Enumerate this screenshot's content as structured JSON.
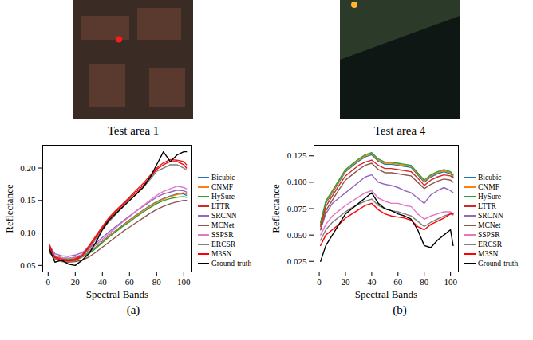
{
  "images": [
    {
      "caption": "Test area 1"
    },
    {
      "caption": "Test area 4"
    }
  ],
  "chart_data": [
    {
      "type": "line",
      "caption": "(a)",
      "x_label": "Spectral Bands",
      "y_label": "Reflectance",
      "x": [
        1,
        5,
        10,
        15,
        20,
        25,
        30,
        35,
        40,
        45,
        50,
        55,
        60,
        65,
        70,
        75,
        80,
        85,
        90,
        95,
        100,
        102
      ],
      "xlim": [
        -4,
        106
      ],
      "xticks": [
        0,
        20,
        40,
        60,
        80,
        100
      ],
      "ylim": [
        0.04,
        0.235
      ],
      "yticks": [
        {
          "value": 0.05,
          "label": "0.05"
        },
        {
          "value": 0.1,
          "label": "0.10"
        },
        {
          "value": 0.15,
          "label": "0.15"
        },
        {
          "value": 0.2,
          "label": "0.20"
        }
      ],
      "grid": false,
      "legend": "right",
      "series": [
        {
          "name": "Bicubic",
          "color": "#1f77b4",
          "values": [
            0.075,
            0.065,
            0.062,
            0.061,
            0.062,
            0.065,
            0.07,
            0.078,
            0.087,
            0.096,
            0.104,
            0.112,
            0.12,
            0.128,
            0.135,
            0.142,
            0.148,
            0.153,
            0.157,
            0.16,
            0.16,
            0.158
          ]
        },
        {
          "name": "CNMF",
          "color": "#ff7f0e",
          "values": [
            0.074,
            0.064,
            0.061,
            0.06,
            0.061,
            0.064,
            0.069,
            0.077,
            0.086,
            0.095,
            0.103,
            0.111,
            0.119,
            0.127,
            0.134,
            0.141,
            0.147,
            0.152,
            0.156,
            0.159,
            0.162,
            0.16
          ]
        },
        {
          "name": "HySure",
          "color": "#2ca02c",
          "values": [
            0.073,
            0.063,
            0.06,
            0.059,
            0.06,
            0.063,
            0.068,
            0.076,
            0.085,
            0.094,
            0.102,
            0.11,
            0.117,
            0.125,
            0.132,
            0.139,
            0.145,
            0.15,
            0.153,
            0.155,
            0.156,
            0.155
          ]
        },
        {
          "name": "LTTR",
          "color": "#d62728",
          "values": [
            0.082,
            0.063,
            0.06,
            0.058,
            0.06,
            0.067,
            0.08,
            0.095,
            0.11,
            0.124,
            0.135,
            0.145,
            0.155,
            0.166,
            0.176,
            0.188,
            0.2,
            0.208,
            0.213,
            0.212,
            0.21,
            0.205
          ]
        },
        {
          "name": "SRCNN",
          "color": "#9467bd",
          "values": [
            0.08,
            0.068,
            0.065,
            0.064,
            0.066,
            0.07,
            0.076,
            0.084,
            0.093,
            0.102,
            0.11,
            0.118,
            0.126,
            0.134,
            0.141,
            0.148,
            0.155,
            0.16,
            0.163,
            0.166,
            0.165,
            0.163
          ]
        },
        {
          "name": "MCNet",
          "color": "#8c564b",
          "values": [
            0.07,
            0.06,
            0.056,
            0.055,
            0.056,
            0.058,
            0.063,
            0.07,
            0.078,
            0.086,
            0.094,
            0.102,
            0.109,
            0.116,
            0.123,
            0.13,
            0.136,
            0.141,
            0.145,
            0.148,
            0.15,
            0.15
          ]
        },
        {
          "name": "SSPSR",
          "color": "#e377c2",
          "values": [
            0.076,
            0.065,
            0.062,
            0.061,
            0.063,
            0.067,
            0.073,
            0.081,
            0.09,
            0.099,
            0.108,
            0.117,
            0.125,
            0.134,
            0.142,
            0.15,
            0.158,
            0.164,
            0.168,
            0.172,
            0.17,
            0.168
          ]
        },
        {
          "name": "ERCSR",
          "color": "#7f7f7f",
          "values": [
            0.078,
            0.06,
            0.057,
            0.056,
            0.057,
            0.063,
            0.075,
            0.09,
            0.105,
            0.118,
            0.129,
            0.14,
            0.15,
            0.16,
            0.17,
            0.182,
            0.195,
            0.2,
            0.205,
            0.205,
            0.2,
            0.197
          ]
        },
        {
          "name": "M3SN",
          "color": "#ff0000",
          "values": [
            0.08,
            0.062,
            0.058,
            0.057,
            0.058,
            0.065,
            0.078,
            0.093,
            0.108,
            0.122,
            0.133,
            0.143,
            0.153,
            0.163,
            0.173,
            0.185,
            0.198,
            0.205,
            0.21,
            0.21,
            0.205,
            0.2
          ]
        },
        {
          "name": "Ground-truth",
          "color": "#000000",
          "values": [
            0.075,
            0.055,
            0.058,
            0.052,
            0.05,
            0.058,
            0.068,
            0.085,
            0.105,
            0.12,
            0.13,
            0.14,
            0.15,
            0.16,
            0.17,
            0.185,
            0.205,
            0.225,
            0.21,
            0.22,
            0.225,
            0.225
          ]
        }
      ]
    },
    {
      "type": "line",
      "caption": "(b)",
      "x_label": "Spectral Bands",
      "y_label": "Reflectance",
      "x": [
        1,
        5,
        10,
        15,
        20,
        25,
        30,
        35,
        40,
        45,
        50,
        55,
        60,
        65,
        70,
        75,
        80,
        85,
        90,
        95,
        100,
        102
      ],
      "xlim": [
        -4,
        106
      ],
      "xticks": [
        0,
        20,
        40,
        60,
        80,
        100
      ],
      "ylim": [
        0.015,
        0.135
      ],
      "yticks": [
        {
          "value": 0.025,
          "label": "0.025"
        },
        {
          "value": 0.05,
          "label": "0.050"
        },
        {
          "value": 0.075,
          "label": "0.075"
        },
        {
          "value": 0.1,
          "label": "0.100"
        },
        {
          "value": 0.125,
          "label": "0.125"
        }
      ],
      "grid": false,
      "legend": "right",
      "series": [
        {
          "name": "Bicubic",
          "color": "#1f77b4",
          "values": [
            0.06,
            0.08,
            0.09,
            0.1,
            0.11,
            0.115,
            0.12,
            0.124,
            0.126,
            0.12,
            0.117,
            0.117,
            0.116,
            0.115,
            0.114,
            0.107,
            0.1,
            0.105,
            0.108,
            0.11,
            0.108,
            0.105
          ]
        },
        {
          "name": "CNMF",
          "color": "#ff7f0e",
          "values": [
            0.061,
            0.081,
            0.091,
            0.101,
            0.111,
            0.116,
            0.121,
            0.125,
            0.127,
            0.121,
            0.118,
            0.118,
            0.117,
            0.116,
            0.115,
            0.108,
            0.101,
            0.106,
            0.109,
            0.111,
            0.109,
            0.106
          ]
        },
        {
          "name": "HySure",
          "color": "#2ca02c",
          "values": [
            0.062,
            0.082,
            0.092,
            0.102,
            0.112,
            0.117,
            0.122,
            0.126,
            0.128,
            0.122,
            0.119,
            0.119,
            0.118,
            0.117,
            0.116,
            0.109,
            0.102,
            0.107,
            0.11,
            0.112,
            0.11,
            0.107
          ]
        },
        {
          "name": "LTTR",
          "color": "#d62728",
          "values": [
            0.058,
            0.077,
            0.087,
            0.097,
            0.106,
            0.111,
            0.116,
            0.119,
            0.121,
            0.116,
            0.113,
            0.113,
            0.112,
            0.111,
            0.11,
            0.104,
            0.097,
            0.102,
            0.105,
            0.107,
            0.106,
            0.104
          ]
        },
        {
          "name": "SRCNN",
          "color": "#9467bd",
          "values": [
            0.055,
            0.07,
            0.08,
            0.085,
            0.09,
            0.095,
            0.1,
            0.105,
            0.107,
            0.1,
            0.098,
            0.097,
            0.095,
            0.092,
            0.09,
            0.085,
            0.08,
            0.088,
            0.092,
            0.095,
            0.092,
            0.09
          ]
        },
        {
          "name": "MCNet",
          "color": "#8c564b",
          "values": [
            0.055,
            0.073,
            0.083,
            0.093,
            0.102,
            0.107,
            0.112,
            0.116,
            0.118,
            0.112,
            0.109,
            0.109,
            0.108,
            0.107,
            0.106,
            0.1,
            0.094,
            0.098,
            0.101,
            0.103,
            0.102,
            0.1
          ]
        },
        {
          "name": "SSPSR",
          "color": "#e377c2",
          "values": [
            0.05,
            0.06,
            0.068,
            0.073,
            0.078,
            0.082,
            0.086,
            0.09,
            0.092,
            0.085,
            0.082,
            0.08,
            0.08,
            0.078,
            0.077,
            0.07,
            0.065,
            0.068,
            0.07,
            0.072,
            0.072,
            0.07
          ]
        },
        {
          "name": "ERCSR",
          "color": "#7f7f7f",
          "values": [
            0.045,
            0.055,
            0.062,
            0.067,
            0.072,
            0.076,
            0.079,
            0.082,
            0.084,
            0.078,
            0.075,
            0.073,
            0.072,
            0.07,
            0.068,
            0.063,
            0.058,
            0.062,
            0.065,
            0.068,
            0.07,
            0.069
          ]
        },
        {
          "name": "M3SN",
          "color": "#ff0000",
          "values": [
            0.04,
            0.05,
            0.055,
            0.06,
            0.066,
            0.07,
            0.074,
            0.078,
            0.08,
            0.074,
            0.07,
            0.068,
            0.067,
            0.066,
            0.064,
            0.058,
            0.055,
            0.06,
            0.063,
            0.066,
            0.07,
            0.07
          ]
        },
        {
          "name": "Ground-truth",
          "color": "#000000",
          "values": [
            0.025,
            0.04,
            0.05,
            0.06,
            0.07,
            0.075,
            0.08,
            0.085,
            0.09,
            0.08,
            0.075,
            0.073,
            0.07,
            0.068,
            0.065,
            0.055,
            0.04,
            0.038,
            0.045,
            0.05,
            0.055,
            0.04
          ]
        }
      ]
    }
  ]
}
